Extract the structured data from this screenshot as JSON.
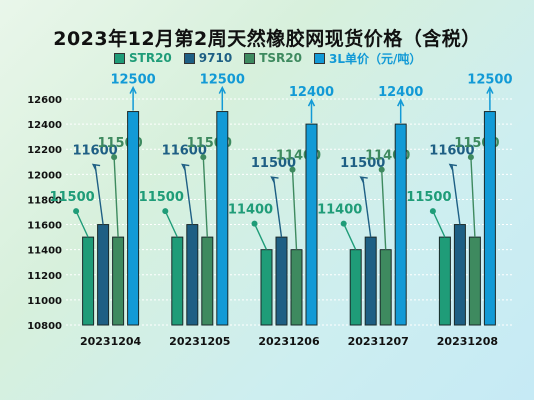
{
  "title": "2023年12月第2周天然橡胶网现货价格（含税）",
  "chart_data": {
    "type": "bar",
    "categories": [
      "20231204",
      "20231205",
      "20231206",
      "20231207",
      "20231208"
    ],
    "series": [
      {
        "name": "STR20",
        "color": "#1f9c78",
        "values": [
          11500,
          11500,
          11400,
          11400,
          11500
        ]
      },
      {
        "name": "9710",
        "color": "#1e5f84",
        "values": [
          11600,
          11600,
          11500,
          11500,
          11600
        ]
      },
      {
        "name": "TSR20",
        "color": "#3e8a5f",
        "values": [
          11500,
          11500,
          11400,
          11400,
          11500
        ]
      },
      {
        "name": "3L单价（元/吨）",
        "color": "#129ad6",
        "values": [
          12500,
          12500,
          12400,
          12400,
          12500
        ]
      }
    ],
    "yticks": [
      10800,
      11000,
      11200,
      11400,
      11600,
      11800,
      12000,
      12200,
      12400,
      12600
    ],
    "ylim": [
      10800,
      12600
    ],
    "xlabel": "",
    "ylabel": "",
    "grid": true,
    "legend_position": "top"
  }
}
